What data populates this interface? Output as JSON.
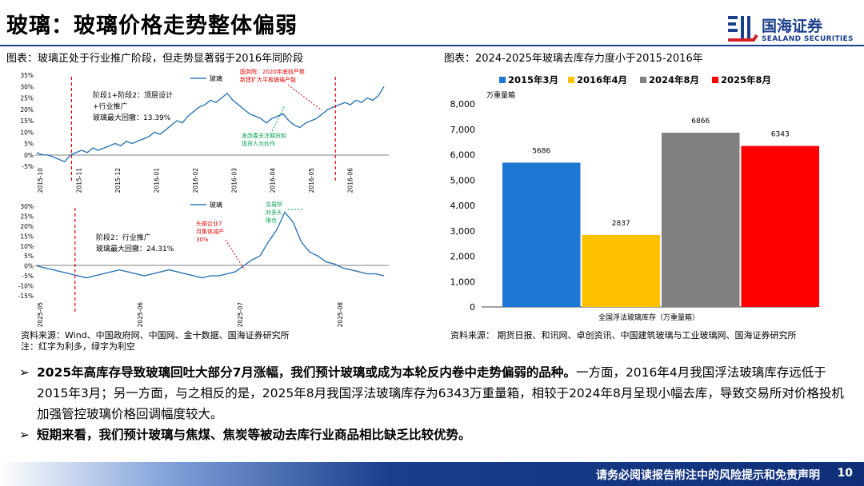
{
  "title": "玻璃：玻璃价格走势整体偏弱",
  "logo": {
    "name_cn": "国海证券",
    "name_en": "SEALAND SECURITIES"
  },
  "left_caption": "图表：玻璃正处于行业推广阶段，但走势显著弱于2016年同阶段",
  "right_caption": "图表：2024-2025年玻璃去库存力度小于2015-2016年",
  "top_chart": {
    "legend": "玻璃",
    "y_ticks": [
      "35%",
      "30%",
      "25%",
      "20%",
      "15%",
      "10%",
      "5%",
      "0%",
      "-5%"
    ],
    "x_ticks": [
      "2015-10",
      "2015-11",
      "2015-12",
      "2016-01",
      "2016-02",
      "2016-03",
      "2016-04",
      "2016-05",
      "2016-06"
    ],
    "note_lines": [
      "阶段1+阶段2：顶层设计",
      "+行业推广",
      "玻璃最大回撤：13.39%"
    ],
    "red_note_lines": [
      "国务院：2020年底前严禁",
      "新建扩大平板玻璃产能"
    ],
    "green_note_lines": [
      "发改委关注期货和",
      "现货人为炒作"
    ]
  },
  "bottom_chart": {
    "legend": "玻璃",
    "y_ticks": [
      "30%",
      "25%",
      "20%",
      "15%",
      "10%",
      "5%",
      "0%",
      "-5%",
      "-10%",
      "-15%"
    ],
    "x_ticks": [
      "2025-05",
      "2025-06",
      "2025-07",
      "2025-08"
    ],
    "note_lines": [
      "阶段2：行业推广",
      "玻璃最大回撤：24.31%"
    ],
    "red_note_lines": [
      "头部企业7",
      "月集体减产",
      "30%"
    ],
    "green_note_lines": [
      "交易所",
      "对多头",
      "限仓"
    ]
  },
  "chart_data": [
    {
      "type": "line",
      "title": "",
      "series": [
        {
          "name": "玻璃",
          "values": [
            1,
            0,
            0,
            -1,
            -2,
            -3,
            0,
            1,
            2,
            1,
            3,
            2,
            3,
            4,
            5,
            4,
            6,
            5,
            6,
            7,
            8,
            10,
            9,
            11,
            13,
            15,
            14,
            17,
            19,
            21,
            22,
            24,
            23,
            25,
            27,
            24,
            22,
            20,
            18,
            17,
            16,
            14,
            16,
            17,
            18,
            15,
            13,
            12,
            14,
            15,
            16,
            18,
            20,
            21,
            22,
            23,
            22,
            24,
            23,
            25,
            24,
            26,
            30
          ]
        }
      ],
      "ylim": [
        -5,
        35
      ],
      "events": [
        "2015-10-20",
        "2016-05-25"
      ]
    },
    {
      "type": "line",
      "title": "",
      "series": [
        {
          "name": "玻璃",
          "values": [
            0,
            -1,
            -2,
            -3,
            -4,
            -5,
            -6,
            -5,
            -4,
            -3,
            -2,
            -3,
            -4,
            -5,
            -4,
            -3,
            -2,
            -3,
            -4,
            -5,
            -6,
            -5,
            -5,
            -4,
            -3,
            0,
            3,
            5,
            12,
            18,
            27,
            22,
            12,
            7,
            5,
            2,
            1,
            -1,
            -2,
            -3,
            -4,
            -4,
            -5
          ]
        }
      ],
      "ylim": [
        -15,
        30
      ],
      "events": [
        "2025-05-15"
      ]
    },
    {
      "type": "bar",
      "title": "全国浮法玻璃库存（万重量箱）",
      "ylabel": "万重量箱",
      "categories": [
        "2015年3月",
        "2016年4月",
        "2024年8月",
        "2025年8月"
      ],
      "values": [
        5686,
        2837,
        6866,
        6343
      ],
      "value_labels": [
        "5686",
        "2837",
        "6866",
        "6343"
      ],
      "colors": [
        "#1f77d4",
        "#ffc000",
        "#808080",
        "#ff0000"
      ],
      "ylim": [
        0,
        8000
      ],
      "y_ticks": [
        "0",
        "1,000",
        "2,000",
        "3,000",
        "4,000",
        "5,000",
        "6,000",
        "7,000",
        "8,000"
      ]
    }
  ],
  "source_left_1": "资料来源：Wind、中国政府网、中国网、金十数据、国海证券研究所",
  "source_left_2": "注：红字为利多，绿字为利空",
  "source_right": "资料来源：  期货日报、和讯网、卓创资讯、中国建筑玻璃与工业玻璃网、国海证券研究所",
  "bullets": [
    {
      "bold": "2025年高库存导致玻璃回吐大部分7月涨幅，我们预计玻璃或成为本轮反内卷中走势偏弱的品种。",
      "rest": "一方面，2016年4月我国浮法玻璃库存远低于2015年3月；另一方面，与之相反的是，2025年8月我国浮法玻璃库存为6343万重量箱，相较于2024年8月呈现小幅去库，导致交易所对价格投机加强管控玻璃价格回调幅度较大。"
    },
    {
      "bold": "短期来看，我们预计玻璃与焦煤、焦炭等被动去库行业商品相比缺乏比较优势。",
      "rest": ""
    }
  ],
  "footer": {
    "text": "请务必阅读报告附注中的风险提示和免责声明",
    "page": "10"
  }
}
